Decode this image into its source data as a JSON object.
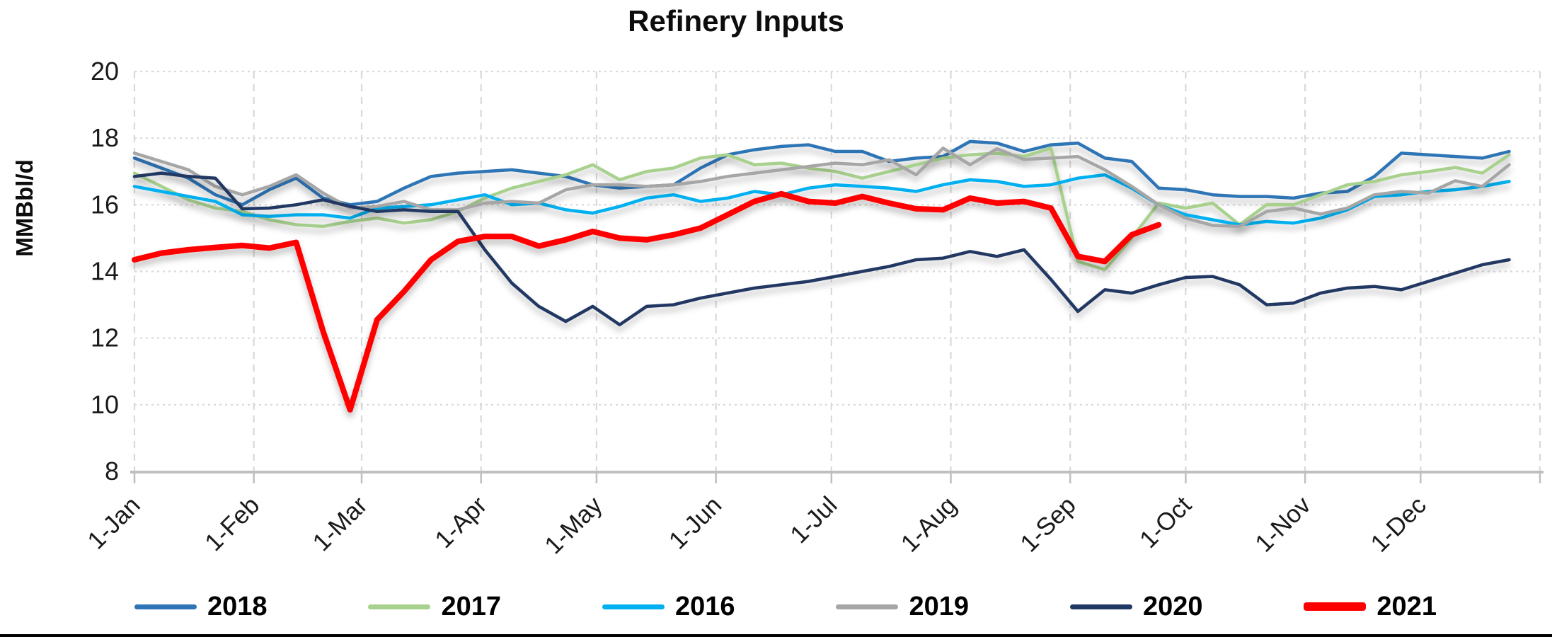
{
  "chart_data": {
    "type": "line",
    "title": "Refinery Inputs",
    "ylabel": "MMBbl/d",
    "ylim": [
      8,
      20
    ],
    "yticks": [
      8,
      10,
      12,
      14,
      16,
      18,
      20
    ],
    "grid": true,
    "legend_position": "bottom",
    "sampling": "weekly data points (7-day interval, day-of-year x scale)",
    "x_axis": {
      "range_days": [
        0,
        365
      ],
      "tick_days": [
        0,
        31,
        59,
        90,
        120,
        151,
        181,
        212,
        243,
        273,
        304,
        334
      ],
      "tick_labels": [
        "1-Jan",
        "1-Feb",
        "1-Mar",
        "1-Apr",
        "1-May",
        "1-Jun",
        "1-Jul",
        "1-Aug",
        "1-Sep",
        "1-Oct",
        "1-Nov",
        "1-Dec"
      ]
    },
    "axis_color": "#BFBFBF",
    "gridline_color": "#D9D9D9",
    "series": [
      {
        "name": "2018",
        "color": "#2E75B6",
        "stroke_width": 4.5,
        "values": [
          17.4,
          17.1,
          16.8,
          16.3,
          16.0,
          16.45,
          16.8,
          16.2,
          16.0,
          16.1,
          16.5,
          16.85,
          16.95,
          17.0,
          17.05,
          16.95,
          16.85,
          16.6,
          16.5,
          16.55,
          16.6,
          17.1,
          17.5,
          17.65,
          17.75,
          17.8,
          17.6,
          17.6,
          17.3,
          17.4,
          17.45,
          17.9,
          17.85,
          17.6,
          17.8,
          17.85,
          17.4,
          17.3,
          16.5,
          16.45,
          16.3,
          16.25,
          16.25,
          16.2,
          16.35,
          16.4,
          16.85,
          17.55,
          17.5,
          17.45,
          17.4,
          17.6
        ]
      },
      {
        "name": "2017",
        "color": "#A9D18E",
        "stroke_width": 4.5,
        "values": [
          16.95,
          16.55,
          16.15,
          15.9,
          15.8,
          15.55,
          15.4,
          15.35,
          15.5,
          15.6,
          15.45,
          15.55,
          15.8,
          16.2,
          16.5,
          16.7,
          16.9,
          17.2,
          16.75,
          17.0,
          17.1,
          17.4,
          17.5,
          17.2,
          17.25,
          17.1,
          17.0,
          16.8,
          17.0,
          17.2,
          17.4,
          17.5,
          17.55,
          17.45,
          17.7,
          14.3,
          14.05,
          15.0,
          16.05,
          15.9,
          16.05,
          15.4,
          16.0,
          16.0,
          16.3,
          16.6,
          16.7,
          16.9,
          17.0,
          17.12,
          16.95,
          17.5
        ]
      },
      {
        "name": "2016",
        "color": "#00B0F0",
        "stroke_width": 4.5,
        "values": [
          16.55,
          16.4,
          16.25,
          16.1,
          15.7,
          15.65,
          15.7,
          15.7,
          15.6,
          15.9,
          15.95,
          16.0,
          16.15,
          16.3,
          16.0,
          16.05,
          15.85,
          15.75,
          15.95,
          16.2,
          16.3,
          16.1,
          16.2,
          16.4,
          16.3,
          16.5,
          16.6,
          16.55,
          16.5,
          16.4,
          16.6,
          16.75,
          16.7,
          16.55,
          16.6,
          16.8,
          16.9,
          16.5,
          16.0,
          15.7,
          15.55,
          15.4,
          15.5,
          15.45,
          15.6,
          15.85,
          16.25,
          16.3,
          16.4,
          16.45,
          16.55,
          16.7
        ]
      },
      {
        "name": "2019",
        "color": "#A6A6A6",
        "stroke_width": 4.5,
        "values": [
          17.55,
          17.3,
          17.05,
          16.55,
          16.3,
          16.55,
          16.9,
          16.35,
          15.9,
          15.95,
          16.1,
          15.85,
          15.85,
          16.05,
          16.1,
          16.05,
          16.45,
          16.6,
          16.6,
          16.55,
          16.6,
          16.7,
          16.85,
          16.95,
          17.05,
          17.15,
          17.25,
          17.2,
          17.35,
          16.9,
          17.7,
          17.2,
          17.68,
          17.36,
          17.4,
          17.45,
          17.05,
          16.55,
          16.0,
          15.6,
          15.38,
          15.35,
          15.8,
          15.9,
          15.72,
          15.9,
          16.3,
          16.4,
          16.35,
          16.72,
          16.55,
          17.2
        ]
      },
      {
        "name": "2020",
        "color": "#203864",
        "stroke_width": 4.5,
        "values": [
          16.85,
          16.95,
          16.85,
          16.8,
          15.88,
          15.9,
          16.0,
          16.15,
          15.95,
          15.8,
          15.85,
          15.8,
          15.8,
          14.65,
          13.65,
          12.95,
          12.5,
          12.95,
          12.4,
          12.95,
          13.0,
          13.2,
          13.35,
          13.5,
          13.6,
          13.7,
          13.85,
          14.0,
          14.15,
          14.35,
          14.4,
          14.6,
          14.45,
          14.65,
          13.76,
          12.8,
          13.45,
          13.35,
          13.6,
          13.82,
          13.85,
          13.6,
          13.0,
          13.05,
          13.35,
          13.5,
          13.55,
          13.45,
          13.7,
          13.95,
          14.2,
          14.35
        ]
      },
      {
        "name": "2021",
        "color": "#FF0000",
        "stroke_width": 8,
        "values": [
          14.35,
          14.55,
          14.65,
          14.72,
          14.78,
          14.7,
          14.87,
          12.2,
          9.85,
          12.55,
          13.4,
          14.35,
          14.9,
          15.05,
          15.05,
          14.76,
          14.95,
          15.2,
          15.0,
          14.95,
          15.1,
          15.3,
          15.7,
          16.1,
          16.33,
          16.1,
          16.05,
          16.25,
          16.05,
          15.88,
          15.85,
          16.2,
          16.05,
          16.1,
          15.9,
          14.45,
          14.3,
          15.1,
          15.4
        ]
      }
    ]
  }
}
